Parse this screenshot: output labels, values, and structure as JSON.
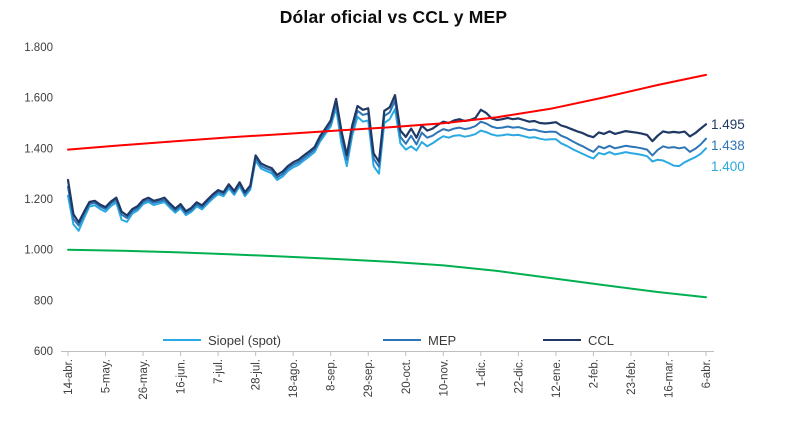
{
  "chart_data": {
    "type": "line",
    "title": "Dólar oficial vs CCL y MEP",
    "ylim": [
      600,
      1800
    ],
    "grid": "off",
    "legend_position": "bottom-inside",
    "y_ticks": [
      {
        "value": 1800,
        "label": "1.800"
      },
      {
        "value": 1600,
        "label": "1.600"
      },
      {
        "value": 1400,
        "label": "1.400"
      },
      {
        "value": 1200,
        "label": "1.200"
      },
      {
        "value": 1000,
        "label": "1.000"
      },
      {
        "value": 800,
        "label": "800"
      },
      {
        "value": 600,
        "label": "600"
      }
    ],
    "x_axis_unit": "date",
    "x_days_total": 357,
    "x_ticks": [
      {
        "day": 0,
        "label": "14-abr."
      },
      {
        "day": 21,
        "label": "5-may."
      },
      {
        "day": 42,
        "label": "26-may."
      },
      {
        "day": 63,
        "label": "16-jun."
      },
      {
        "day": 84,
        "label": "7-jul."
      },
      {
        "day": 105,
        "label": "28-jul."
      },
      {
        "day": 126,
        "label": "18-ago."
      },
      {
        "day": 147,
        "label": "8-sep."
      },
      {
        "day": 168,
        "label": "29-sep."
      },
      {
        "day": 189,
        "label": "20-oct."
      },
      {
        "day": 210,
        "label": "10-nov."
      },
      {
        "day": 231,
        "label": "1-dic."
      },
      {
        "day": 252,
        "label": "22-dic."
      },
      {
        "day": 273,
        "label": "12-ene."
      },
      {
        "day": 294,
        "label": "2-feb."
      },
      {
        "day": 315,
        "label": "23-feb."
      },
      {
        "day": 336,
        "label": "16-mar."
      },
      {
        "day": 357,
        "label": "6-abr."
      }
    ],
    "series": [
      {
        "key": "siopel",
        "name": "Siopel (spot)",
        "color": "#2BA9E2",
        "stroke_width": 2,
        "in_legend": true,
        "x_start": 0,
        "x_step": 3,
        "values": [
          1213,
          1100,
          1075,
          1125,
          1170,
          1175,
          1160,
          1150,
          1172,
          1186,
          1118,
          1110,
          1142,
          1155,
          1180,
          1188,
          1176,
          1182,
          1188,
          1166,
          1146,
          1164,
          1136,
          1149,
          1171,
          1159,
          1181,
          1202,
          1219,
          1211,
          1242,
          1216,
          1250,
          1211,
          1237,
          1352,
          1320,
          1310,
          1302,
          1275,
          1288,
          1310,
          1325,
          1335,
          1352,
          1368,
          1385,
          1426,
          1456,
          1486,
          1560,
          1420,
          1330,
          1450,
          1525,
          1505,
          1510,
          1330,
          1300,
          1500,
          1515,
          1555,
          1420,
          1395,
          1408,
          1392,
          1425,
          1408,
          1420,
          1435,
          1448,
          1442,
          1450,
          1452,
          1446,
          1450,
          1456,
          1470,
          1464,
          1455,
          1450,
          1452,
          1455,
          1452,
          1453,
          1448,
          1442,
          1444,
          1438,
          1434,
          1436,
          1436,
          1420,
          1410,
          1398,
          1388,
          1378,
          1368,
          1360,
          1382,
          1376,
          1385,
          1376,
          1380,
          1385,
          1381,
          1378,
          1374,
          1369,
          1348,
          1355,
          1352,
          1342,
          1332,
          1330,
          1345,
          1355,
          1365,
          1378,
          1400
        ]
      },
      {
        "key": "mep",
        "name": "MEP",
        "color": "#2E75B6",
        "stroke_width": 2,
        "in_legend": true,
        "x_start": 0,
        "x_step": 3,
        "values": [
          1248,
          1122,
          1095,
          1140,
          1180,
          1185,
          1170,
          1160,
          1182,
          1196,
          1138,
          1125,
          1152,
          1164,
          1188,
          1196,
          1185,
          1190,
          1196,
          1174,
          1154,
          1172,
          1144,
          1157,
          1179,
          1167,
          1189,
          1210,
          1227,
          1219,
          1250,
          1224,
          1258,
          1219,
          1245,
          1362,
          1330,
          1320,
          1312,
          1285,
          1298,
          1320,
          1335,
          1345,
          1362,
          1378,
          1395,
          1436,
          1466,
          1496,
          1578,
          1452,
          1355,
          1472,
          1548,
          1532,
          1538,
          1360,
          1327,
          1528,
          1542,
          1588,
          1445,
          1418,
          1450,
          1415,
          1462,
          1442,
          1450,
          1464,
          1476,
          1470,
          1478,
          1482,
          1476,
          1480,
          1488,
          1505,
          1498,
          1486,
          1480,
          1482,
          1486,
          1482,
          1484,
          1478,
          1472,
          1474,
          1468,
          1464,
          1466,
          1465,
          1450,
          1441,
          1429,
          1418,
          1408,
          1396,
          1386,
          1408,
          1400,
          1410,
          1400,
          1405,
          1410,
          1407,
          1404,
          1400,
          1395,
          1372,
          1394,
          1408,
          1402,
          1405,
          1400,
          1404,
          1386,
          1398,
          1415,
          1438
        ]
      },
      {
        "key": "ccl",
        "name": "CCL",
        "color": "#1F3864",
        "stroke_width": 2.2,
        "in_legend": true,
        "x_start": 0,
        "x_step": 3,
        "values": [
          1275,
          1140,
          1108,
          1150,
          1188,
          1193,
          1178,
          1168,
          1190,
          1205,
          1150,
          1135,
          1160,
          1172,
          1196,
          1205,
          1193,
          1198,
          1205,
          1182,
          1162,
          1180,
          1152,
          1165,
          1187,
          1175,
          1197,
          1218,
          1235,
          1227,
          1258,
          1232,
          1266,
          1227,
          1253,
          1372,
          1340,
          1330,
          1322,
          1295,
          1308,
          1330,
          1345,
          1355,
          1372,
          1388,
          1405,
          1448,
          1478,
          1510,
          1595,
          1470,
          1373,
          1490,
          1567,
          1552,
          1558,
          1380,
          1347,
          1548,
          1562,
          1610,
          1470,
          1445,
          1478,
          1442,
          1490,
          1470,
          1478,
          1493,
          1505,
          1500,
          1510,
          1515,
          1508,
          1512,
          1520,
          1552,
          1540,
          1518,
          1512,
          1515,
          1520,
          1515,
          1518,
          1512,
          1505,
          1508,
          1500,
          1498,
          1500,
          1503,
          1490,
          1484,
          1475,
          1467,
          1460,
          1450,
          1444,
          1463,
          1457,
          1467,
          1457,
          1462,
          1468,
          1465,
          1462,
          1458,
          1453,
          1428,
          1450,
          1467,
          1462,
          1465,
          1462,
          1466,
          1447,
          1460,
          1478,
          1495
        ]
      },
      {
        "key": "banda-inferior",
        "name": "",
        "color": "#00B050",
        "stroke_width": 2,
        "in_legend": false,
        "x": [
          0,
          30,
          60,
          90,
          120,
          150,
          180,
          210,
          240,
          270,
          300,
          330,
          357
        ],
        "values": [
          1000,
          996,
          990,
          982,
          973,
          963,
          952,
          938,
          916,
          888,
          860,
          833,
          812
        ]
      },
      {
        "key": "banda-superior",
        "name": "",
        "color": "#FF0000",
        "stroke_width": 2,
        "in_legend": false,
        "x": [
          0,
          30,
          60,
          90,
          120,
          150,
          180,
          210,
          240,
          270,
          300,
          330,
          357
        ],
        "values": [
          1395,
          1412,
          1428,
          1443,
          1456,
          1470,
          1483,
          1499,
          1523,
          1556,
          1601,
          1650,
          1690
        ]
      }
    ],
    "end_labels": [
      {
        "text": "1.495",
        "series": "ccl",
        "color": "#1F3864"
      },
      {
        "text": "1.438",
        "series": "mep",
        "color": "#2E75B6"
      },
      {
        "text": "1.400",
        "series": "siopel",
        "color": "#2BA9E2"
      }
    ]
  },
  "colors": {
    "background": "#FFFFFF",
    "axis_line": "#BFBFBF",
    "tick_label": "#404040",
    "title_text": "#0D0D0D",
    "legend_text": "#3A3A3A"
  }
}
